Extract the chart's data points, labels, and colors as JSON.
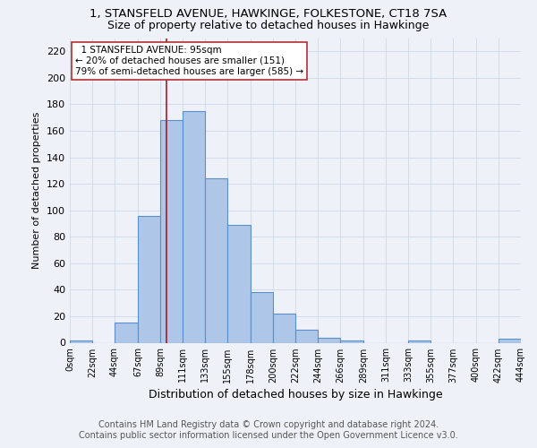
{
  "title": "1, STANSFELD AVENUE, HAWKINGE, FOLKESTONE, CT18 7SA",
  "subtitle": "Size of property relative to detached houses in Hawkinge",
  "xlabel": "Distribution of detached houses by size in Hawkinge",
  "ylabel": "Number of detached properties",
  "footnote1": "Contains HM Land Registry data © Crown copyright and database right 2024.",
  "footnote2": "Contains public sector information licensed under the Open Government Licence v3.0.",
  "bar_left_edges": [
    0,
    22,
    44,
    67,
    89,
    111,
    133,
    155,
    178,
    200,
    222,
    244,
    266,
    289,
    311,
    333,
    355,
    377,
    400,
    422
  ],
  "bar_heights": [
    2,
    0,
    15,
    96,
    168,
    175,
    124,
    89,
    38,
    22,
    10,
    4,
    2,
    0,
    0,
    2,
    0,
    0,
    0,
    3
  ],
  "bar_widths": [
    22,
    22,
    23,
    22,
    22,
    22,
    22,
    23,
    22,
    22,
    22,
    22,
    23,
    22,
    22,
    22,
    22,
    23,
    22,
    22
  ],
  "bar_color": "#aec6e8",
  "bar_edge_color": "#5b8fc9",
  "xtick_labels": [
    "0sqm",
    "22sqm",
    "44sqm",
    "67sqm",
    "89sqm",
    "111sqm",
    "133sqm",
    "155sqm",
    "178sqm",
    "200sqm",
    "222sqm",
    "244sqm",
    "266sqm",
    "289sqm",
    "311sqm",
    "333sqm",
    "355sqm",
    "377sqm",
    "400sqm",
    "422sqm",
    "444sqm"
  ],
  "xtick_positions": [
    0,
    22,
    44,
    67,
    89,
    111,
    133,
    155,
    178,
    200,
    222,
    244,
    266,
    289,
    311,
    333,
    355,
    377,
    400,
    422,
    444
  ],
  "ylim": [
    0,
    230
  ],
  "yticks": [
    0,
    20,
    40,
    60,
    80,
    100,
    120,
    140,
    160,
    180,
    200,
    220
  ],
  "grid_color": "#d0d8e8",
  "background_color": "#eef2f8",
  "property_value": 95,
  "red_line_color": "#a02020",
  "annotation_line1": "  1 STANSFELD AVENUE: 95sqm",
  "annotation_line2": "← 20% of detached houses are smaller (151)",
  "annotation_line3": "79% of semi-detached houses are larger (585) →",
  "annotation_box_color": "white",
  "annotation_box_edge_color": "#b03030",
  "title_fontsize": 9.5,
  "subtitle_fontsize": 9,
  "xlabel_fontsize": 9,
  "ylabel_fontsize": 8,
  "xtick_fontsize": 7,
  "ytick_fontsize": 8,
  "footnote_fontsize": 7,
  "annotation_fontsize": 7.5
}
